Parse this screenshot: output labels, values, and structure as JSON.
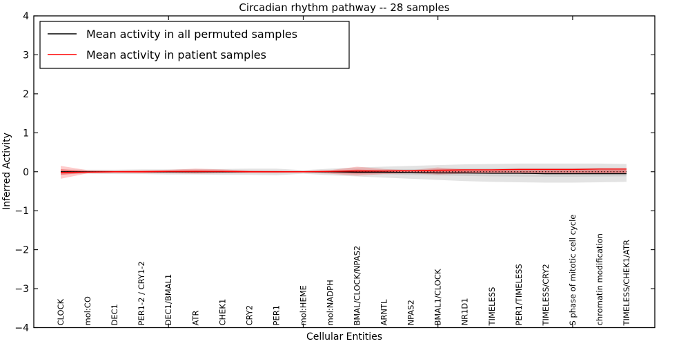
{
  "title": "Circadian rhythm pathway -- 28 samples",
  "legend": {
    "items": [
      {
        "label": "Mean activity in all permuted samples",
        "color": "#000000"
      },
      {
        "label": "Mean activity in patient samples",
        "color": "#ff0000"
      }
    ]
  },
  "colors": {
    "permuted_line": "#000000",
    "patient_line": "#ff0000",
    "permuted_band": "#999999",
    "patient_band": "#ff0000",
    "spine": "#000000",
    "background": "#ffffff"
  },
  "chart_data": {
    "type": "line",
    "title": "Circadian rhythm pathway -- 28 samples",
    "xlabel": "Cellular Entities",
    "ylabel": "Inferred Activity",
    "ylim": [
      -4,
      4
    ],
    "yticks": [
      -4,
      -3,
      -2,
      -1,
      0,
      1,
      2,
      3,
      4
    ],
    "xticks_numeric": [
      0,
      5,
      10,
      15,
      20
    ],
    "grid": false,
    "legend_position": "upper left",
    "zero_line_style": "dotted",
    "categories": [
      "CLOCK",
      "mol:CO",
      "DEC1",
      "PER1-2 / CRY1-2",
      "DEC1/BMAL1",
      "ATR",
      "CHEK1",
      "CRY2",
      "PER1",
      "mol:HEME",
      "mol:NADPH",
      "BMAL/CLOCK/NPAS2",
      "ARNTL",
      "NPAS2",
      "BMAL1/CLOCK",
      "NR1D1",
      "TIMELESS",
      "PER1/TIMELESS",
      "TIMELESS/CRY2",
      "S phase of mitotic cell cycle",
      "chromatin modification",
      "TIMELESS/CHEK1/ATR"
    ],
    "series": [
      {
        "name": "Mean activity in all permuted samples",
        "values": [
          0,
          0,
          0,
          0,
          0,
          0,
          0,
          0,
          0,
          0,
          0,
          -0.01,
          -0.01,
          -0.02,
          -0.03,
          -0.03,
          -0.04,
          -0.04,
          -0.05,
          -0.05,
          -0.05,
          -0.05
        ]
      },
      {
        "name": "Mean activity in patient samples",
        "values": [
          -0.02,
          -0.01,
          0,
          0,
          0.01,
          0.01,
          0.01,
          0,
          0,
          0,
          0.01,
          0.02,
          0.02,
          0.03,
          0.04,
          0.05,
          0.05,
          0.06,
          0.06,
          0.06,
          0.07,
          0.07
        ]
      }
    ],
    "bands": {
      "permuted_upper": [
        0.06,
        0.05,
        0.05,
        0.06,
        0.06,
        0.07,
        0.07,
        0.08,
        0.08,
        0.04,
        0.08,
        0.11,
        0.13,
        0.15,
        0.17,
        0.19,
        0.2,
        0.21,
        0.21,
        0.21,
        0.21,
        0.2
      ],
      "permuted_lower": [
        -0.07,
        -0.05,
        -0.06,
        -0.06,
        -0.07,
        -0.07,
        -0.08,
        -0.08,
        -0.09,
        -0.05,
        -0.09,
        -0.12,
        -0.15,
        -0.18,
        -0.21,
        -0.24,
        -0.26,
        -0.27,
        -0.28,
        -0.28,
        -0.27,
        -0.26
      ],
      "patient_upper": [
        0.15,
        0.04,
        0.03,
        0.04,
        0.05,
        0.08,
        0.06,
        0.03,
        0.02,
        0.02,
        0.04,
        0.13,
        0.07,
        0.04,
        0.11,
        0.06,
        0.05,
        0.05,
        0.05,
        0.06,
        0.08,
        0.08
      ],
      "patient_lower": [
        -0.18,
        -0.04,
        -0.03,
        -0.04,
        -0.04,
        -0.05,
        -0.04,
        -0.03,
        -0.03,
        -0.02,
        -0.05,
        -0.1,
        -0.06,
        -0.04,
        -0.07,
        -0.05,
        -0.04,
        -0.04,
        -0.04,
        -0.04,
        -0.05,
        -0.04
      ]
    }
  }
}
